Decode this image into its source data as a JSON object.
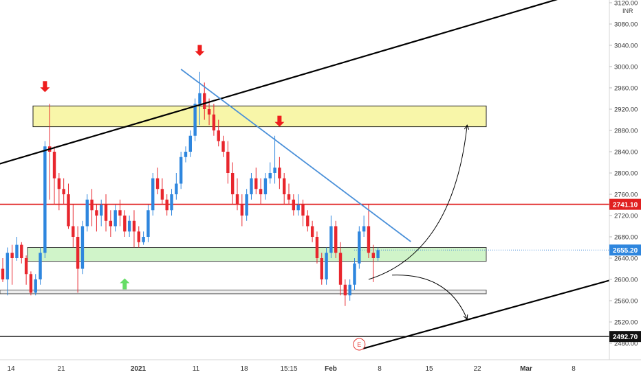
{
  "chart_data": {
    "type": "candlestick",
    "currency": "INR",
    "y_axis": {
      "ticks": [
        3120,
        3080,
        3040,
        3000,
        2960,
        2920,
        2880,
        2840,
        2800,
        2760,
        2720,
        2680,
        2640,
        2600,
        2560,
        2520,
        2480
      ],
      "tick_labels": [
        "3120.00",
        "3080.00",
        "3040.00",
        "3000.00",
        "2960.00",
        "2920.00",
        "2880.00",
        "2840.00",
        "2800.00",
        "2760.00",
        "2720.00",
        "2680.00",
        "2640.00",
        "2600.00",
        "2560.00",
        "2520.00",
        "2480.00"
      ],
      "range": [
        2468,
        3128
      ]
    },
    "x_axis": {
      "labels": [
        "14",
        "21",
        "2021",
        "11",
        "18",
        "15:15",
        "Feb",
        "8",
        "15",
        "22",
        "Mar",
        "8"
      ]
    },
    "price_labels": [
      {
        "value": 2741.1,
        "text": "2741.10",
        "style": "red"
      },
      {
        "value": 2655.2,
        "text": "2655.20",
        "style": "blue"
      },
      {
        "value": 2492.7,
        "text": "2492.70",
        "style": "black"
      }
    ],
    "zones": [
      {
        "name": "resistance-zone",
        "color": "#f7f59a",
        "low": 2887,
        "high": 2926
      },
      {
        "name": "support-zone",
        "color": "#c8f2c0",
        "low": 2634,
        "high": 2660
      },
      {
        "name": "lower-support-zone",
        "color": "#eeeeee",
        "low": 2573,
        "high": 2580
      }
    ],
    "lines": [
      {
        "name": "upper-channel-line",
        "color": "#000000",
        "from": {
          "bar": -1.5,
          "value": 2815
        },
        "to": {
          "bar": 125,
          "value": 3144
        }
      },
      {
        "name": "lower-channel-line",
        "color": "#000000",
        "from": {
          "bar": 76,
          "value": 2468
        },
        "to": {
          "bar": 142,
          "value": 2629
        }
      },
      {
        "name": "descending-trendline",
        "color": "#4a90d9",
        "from": {
          "bar": 38,
          "value": 2995
        },
        "to": {
          "bar": 87,
          "value": 2671
        }
      },
      {
        "name": "horizontal-resistance-line",
        "color": "#e02020",
        "value": 2741.1
      },
      {
        "name": "horizontal-low-line",
        "color": "#000000",
        "value": 2492.7
      }
    ],
    "markers": [
      {
        "name": "sell-arrow",
        "type": "down",
        "color": "#ee1d1d",
        "bar": 9,
        "value": 2952
      },
      {
        "name": "sell-arrow",
        "type": "down",
        "color": "#ee1d1d",
        "bar": 42,
        "value": 3020
      },
      {
        "name": "sell-arrow",
        "type": "down",
        "color": "#ee1d1d",
        "bar": 59,
        "value": 2887
      },
      {
        "name": "buy-arrow",
        "type": "up",
        "color": "#66dd66",
        "bar": 26,
        "value": 2602
      },
      {
        "name": "earnings-marker",
        "type": "circle",
        "label": "E",
        "color": "#e53935",
        "bar": 76,
        "value": 2478
      }
    ],
    "projections": [
      {
        "name": "bullish-projection",
        "from": {
          "bar": 78,
          "value": 2600
        },
        "ctrl": {
          "bar": 96,
          "value": 2650
        },
        "to": {
          "bar": 99,
          "value": 2890
        }
      },
      {
        "name": "bearish-projection",
        "from": {
          "bar": 83,
          "value": 2608
        },
        "ctrl": {
          "bar": 95,
          "value": 2612
        },
        "to": {
          "bar": 99,
          "value": 2525
        }
      }
    ],
    "candles": [
      [
        2620,
        2640,
        2600,
        2595
      ],
      [
        2600,
        2660,
        2650,
        2570
      ],
      [
        2650,
        2665,
        2640,
        2590
      ],
      [
        2640,
        2680,
        2665,
        2635
      ],
      [
        2665,
        2670,
        2640,
        2630
      ],
      [
        2640,
        2645,
        2610,
        2590
      ],
      [
        2610,
        2615,
        2575,
        2570
      ],
      [
        2575,
        2610,
        2600,
        2570
      ],
      [
        2600,
        2660,
        2650,
        2590
      ],
      [
        2650,
        2860,
        2850,
        2640
      ],
      [
        2850,
        2930,
        2840,
        2750
      ],
      [
        2840,
        2850,
        2790,
        2740
      ],
      [
        2790,
        2800,
        2770,
        2730
      ],
      [
        2770,
        2790,
        2760,
        2740
      ],
      [
        2760,
        2780,
        2700,
        2695
      ],
      [
        2700,
        2740,
        2680,
        2660
      ],
      [
        2680,
        2700,
        2620,
        2575
      ],
      [
        2620,
        2710,
        2700,
        2610
      ],
      [
        2700,
        2760,
        2750,
        2690
      ],
      [
        2750,
        2770,
        2730,
        2700
      ],
      [
        2730,
        2740,
        2720,
        2690
      ],
      [
        2720,
        2750,
        2740,
        2700
      ],
      [
        2740,
        2760,
        2710,
        2690
      ],
      [
        2710,
        2730,
        2700,
        2680
      ],
      [
        2700,
        2740,
        2730,
        2690
      ],
      [
        2730,
        2750,
        2720,
        2700
      ],
      [
        2720,
        2730,
        2690,
        2680
      ],
      [
        2690,
        2720,
        2710,
        2680
      ],
      [
        2710,
        2730,
        2690,
        2660
      ],
      [
        2690,
        2700,
        2670,
        2660
      ],
      [
        2670,
        2690,
        2680,
        2665
      ],
      [
        2680,
        2740,
        2730,
        2670
      ],
      [
        2730,
        2800,
        2790,
        2720
      ],
      [
        2790,
        2810,
        2770,
        2760
      ],
      [
        2770,
        2790,
        2750,
        2740
      ],
      [
        2750,
        2760,
        2730,
        2720
      ],
      [
        2730,
        2770,
        2760,
        2720
      ],
      [
        2760,
        2800,
        2780,
        2750
      ],
      [
        2780,
        2840,
        2830,
        2770
      ],
      [
        2830,
        2850,
        2840,
        2820
      ],
      [
        2840,
        2880,
        2870,
        2830
      ],
      [
        2870,
        2940,
        2930,
        2860
      ],
      [
        2930,
        2990,
        2950,
        2890
      ],
      [
        2950,
        2970,
        2920,
        2900
      ],
      [
        2920,
        2940,
        2910,
        2890
      ],
      [
        2910,
        2930,
        2880,
        2870
      ],
      [
        2880,
        2900,
        2860,
        2850
      ],
      [
        2860,
        2870,
        2840,
        2830
      ],
      [
        2840,
        2860,
        2800,
        2780
      ],
      [
        2800,
        2820,
        2760,
        2740
      ],
      [
        2760,
        2790,
        2740,
        2730
      ],
      [
        2740,
        2760,
        2720,
        2700
      ],
      [
        2720,
        2770,
        2760,
        2710
      ],
      [
        2760,
        2800,
        2790,
        2750
      ],
      [
        2790,
        2810,
        2770,
        2760
      ],
      [
        2770,
        2790,
        2760,
        2740
      ],
      [
        2760,
        2800,
        2790,
        2750
      ],
      [
        2790,
        2820,
        2800,
        2780
      ],
      [
        2800,
        2870,
        2810,
        2780
      ],
      [
        2810,
        2830,
        2790,
        2770
      ],
      [
        2790,
        2800,
        2760,
        2740
      ],
      [
        2760,
        2780,
        2750,
        2740
      ],
      [
        2750,
        2760,
        2730,
        2720
      ],
      [
        2730,
        2760,
        2740,
        2720
      ],
      [
        2740,
        2750,
        2720,
        2700
      ],
      [
        2720,
        2730,
        2700,
        2690
      ],
      [
        2700,
        2710,
        2680,
        2670
      ],
      [
        2680,
        2690,
        2640,
        2630
      ],
      [
        2640,
        2650,
        2600,
        2590
      ],
      [
        2600,
        2660,
        2650,
        2590
      ],
      [
        2650,
        2720,
        2700,
        2640
      ],
      [
        2700,
        2710,
        2650,
        2640
      ],
      [
        2650,
        2670,
        2590,
        2570
      ],
      [
        2590,
        2600,
        2570,
        2550
      ],
      [
        2570,
        2600,
        2590,
        2560
      ],
      [
        2590,
        2640,
        2630,
        2580
      ],
      [
        2630,
        2700,
        2690,
        2620
      ],
      [
        2690,
        2720,
        2700,
        2680
      ],
      [
        2700,
        2740,
        2650,
        2640
      ],
      [
        2650,
        2665,
        2640,
        2595
      ],
      [
        2640,
        2660,
        2655,
        2635
      ]
    ]
  }
}
